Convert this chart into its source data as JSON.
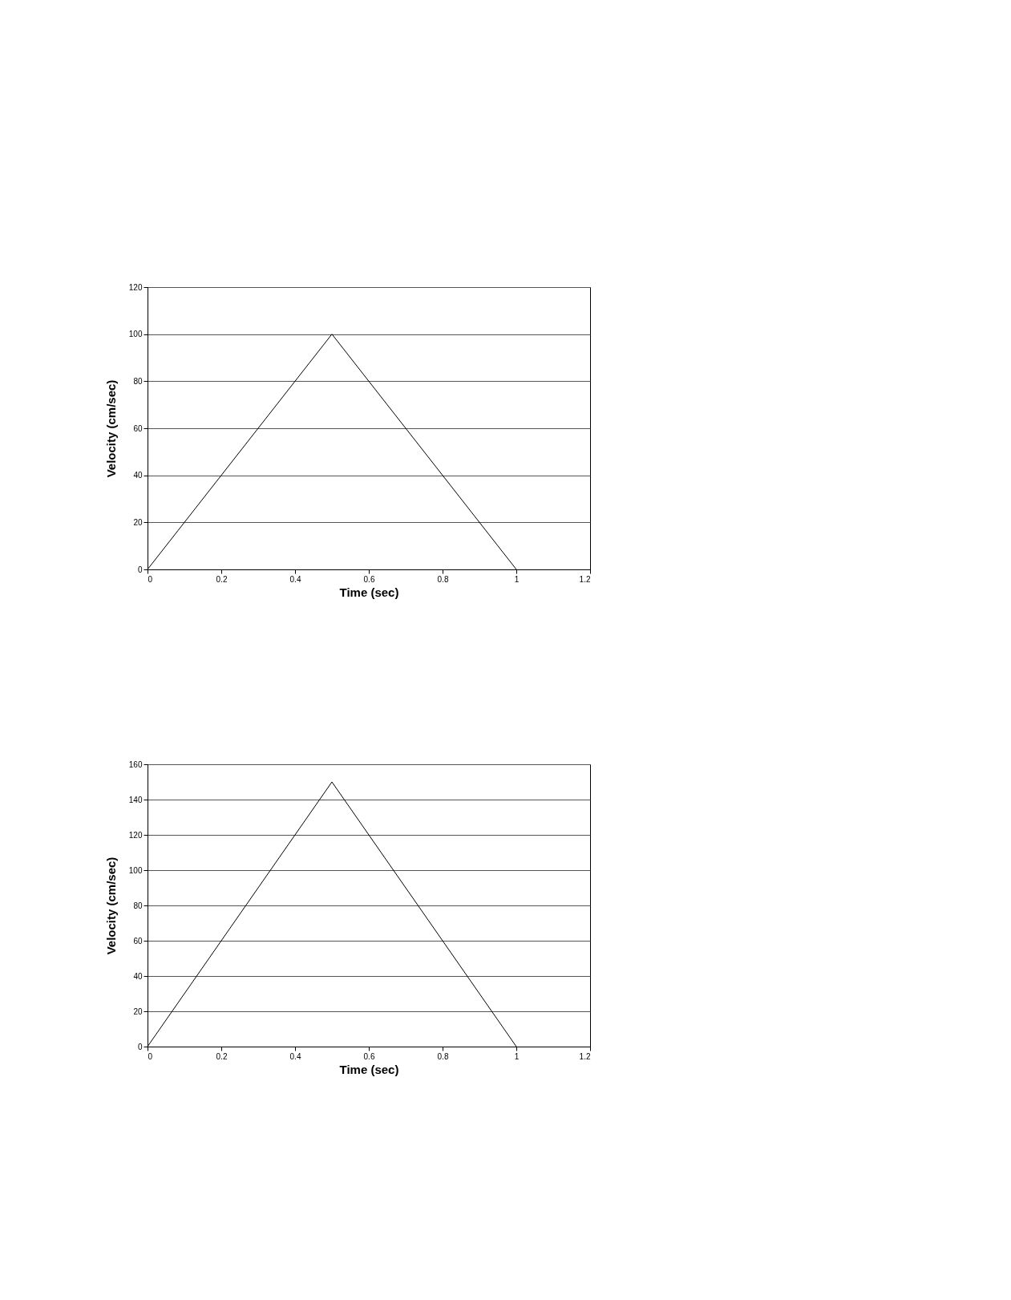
{
  "chart_data": [
    {
      "type": "line",
      "xlabel": "Time (sec)",
      "ylabel": "Velocity (cm/sec)",
      "x": [
        0,
        0.5,
        1
      ],
      "series": [
        {
          "color": "#000000",
          "values": [
            0,
            100,
            0
          ]
        }
      ],
      "xlim": [
        0,
        1.2
      ],
      "xticks": [
        0,
        0.2,
        0.4,
        0.6,
        0.8,
        1,
        1.2
      ],
      "ylim": [
        0,
        120
      ],
      "yticks": [
        0,
        20,
        40,
        60,
        80,
        100,
        120
      ],
      "grid": "y",
      "marker": "none",
      "line_style": "solid"
    },
    {
      "type": "line",
      "xlabel": "Time (sec)",
      "ylabel": "Velocity (cm/sec)",
      "x": [
        0,
        0.5,
        1
      ],
      "series": [
        {
          "color": "#000000",
          "values": [
            0,
            150,
            0
          ]
        }
      ],
      "xlim": [
        0,
        1.2
      ],
      "xticks": [
        0,
        0.2,
        0.4,
        0.6,
        0.8,
        1,
        1.2
      ],
      "ylim": [
        0,
        160
      ],
      "yticks": [
        0,
        20,
        40,
        60,
        80,
        100,
        120,
        140,
        160
      ],
      "grid": "y",
      "marker": "none",
      "line_style": "solid"
    }
  ]
}
